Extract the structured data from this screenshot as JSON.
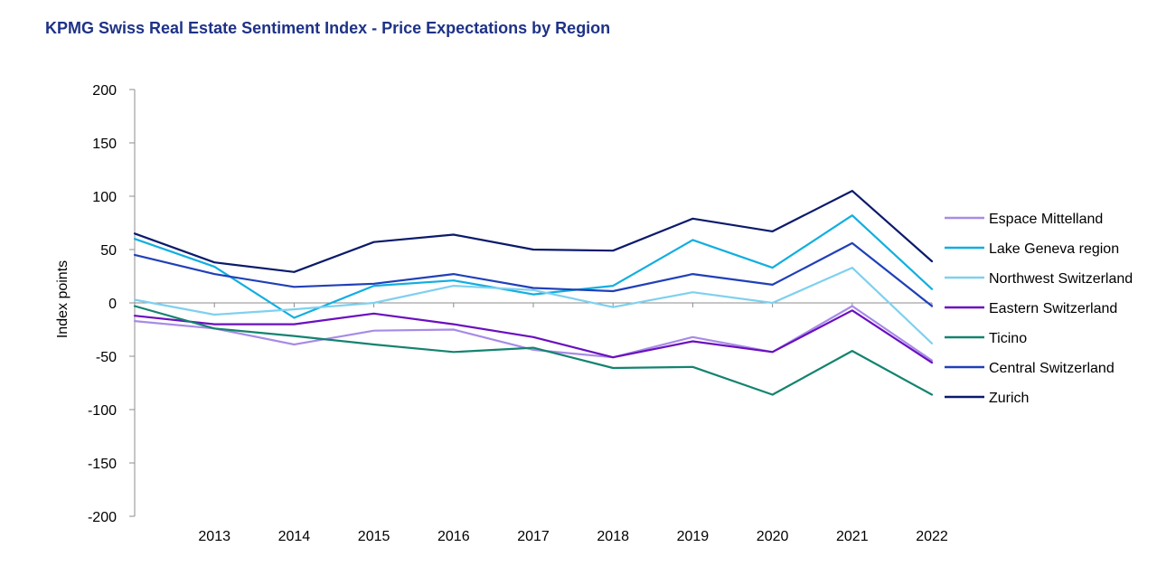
{
  "chart_data": {
    "type": "line",
    "title": "KPMG Swiss Real Estate Sentiment Index - Price Expectations by Region",
    "xlabel": "",
    "ylabel": "Index points",
    "x": [
      "2012",
      "2013",
      "2014",
      "2015",
      "2016",
      "2017",
      "2018",
      "2019",
      "2020",
      "2021",
      "2022"
    ],
    "x_tick_labels": [
      "",
      "2013",
      "2014",
      "2015",
      "2016",
      "2017",
      "2018",
      "2019",
      "2020",
      "2021",
      "2022"
    ],
    "ylim": [
      -200,
      200
    ],
    "yticks": [
      200,
      150,
      100,
      50,
      0,
      -50,
      -100,
      -150,
      -200
    ],
    "grid": false,
    "legend_position": "right",
    "series": [
      {
        "name": "Espace Mittelland",
        "color": "#a78be6",
        "values": [
          -17,
          -24,
          -39,
          -26,
          -25,
          -44,
          -51,
          -32,
          -46,
          -3,
          -54
        ]
      },
      {
        "name": "Lake Geneva region",
        "color": "#11aee0",
        "values": [
          60,
          34,
          -14,
          16,
          21,
          8,
          16,
          59,
          33,
          82,
          13
        ]
      },
      {
        "name": "Northwest Switzerland",
        "color": "#7fd0ef",
        "values": [
          3,
          -11,
          -6,
          0,
          16,
          12,
          -4,
          10,
          0,
          33,
          -38
        ]
      },
      {
        "name": "Eastern Switzerland",
        "color": "#6a0fbf",
        "values": [
          -12,
          -20,
          -20,
          -10,
          -20,
          -32,
          -51,
          -36,
          -46,
          -7,
          -56
        ]
      },
      {
        "name": "Ticino",
        "color": "#14836f",
        "values": [
          -3,
          -24,
          -31,
          -39,
          -46,
          -42,
          -61,
          -60,
          -86,
          -45,
          -86
        ]
      },
      {
        "name": "Central Switzerland",
        "color": "#2040b8",
        "values": [
          45,
          27,
          15,
          18,
          27,
          14,
          11,
          27,
          17,
          56,
          -3
        ]
      },
      {
        "name": "Zurich",
        "color": "#0b1a6b",
        "values": [
          65,
          38,
          29,
          57,
          64,
          50,
          49,
          79,
          67,
          105,
          39
        ]
      }
    ]
  }
}
